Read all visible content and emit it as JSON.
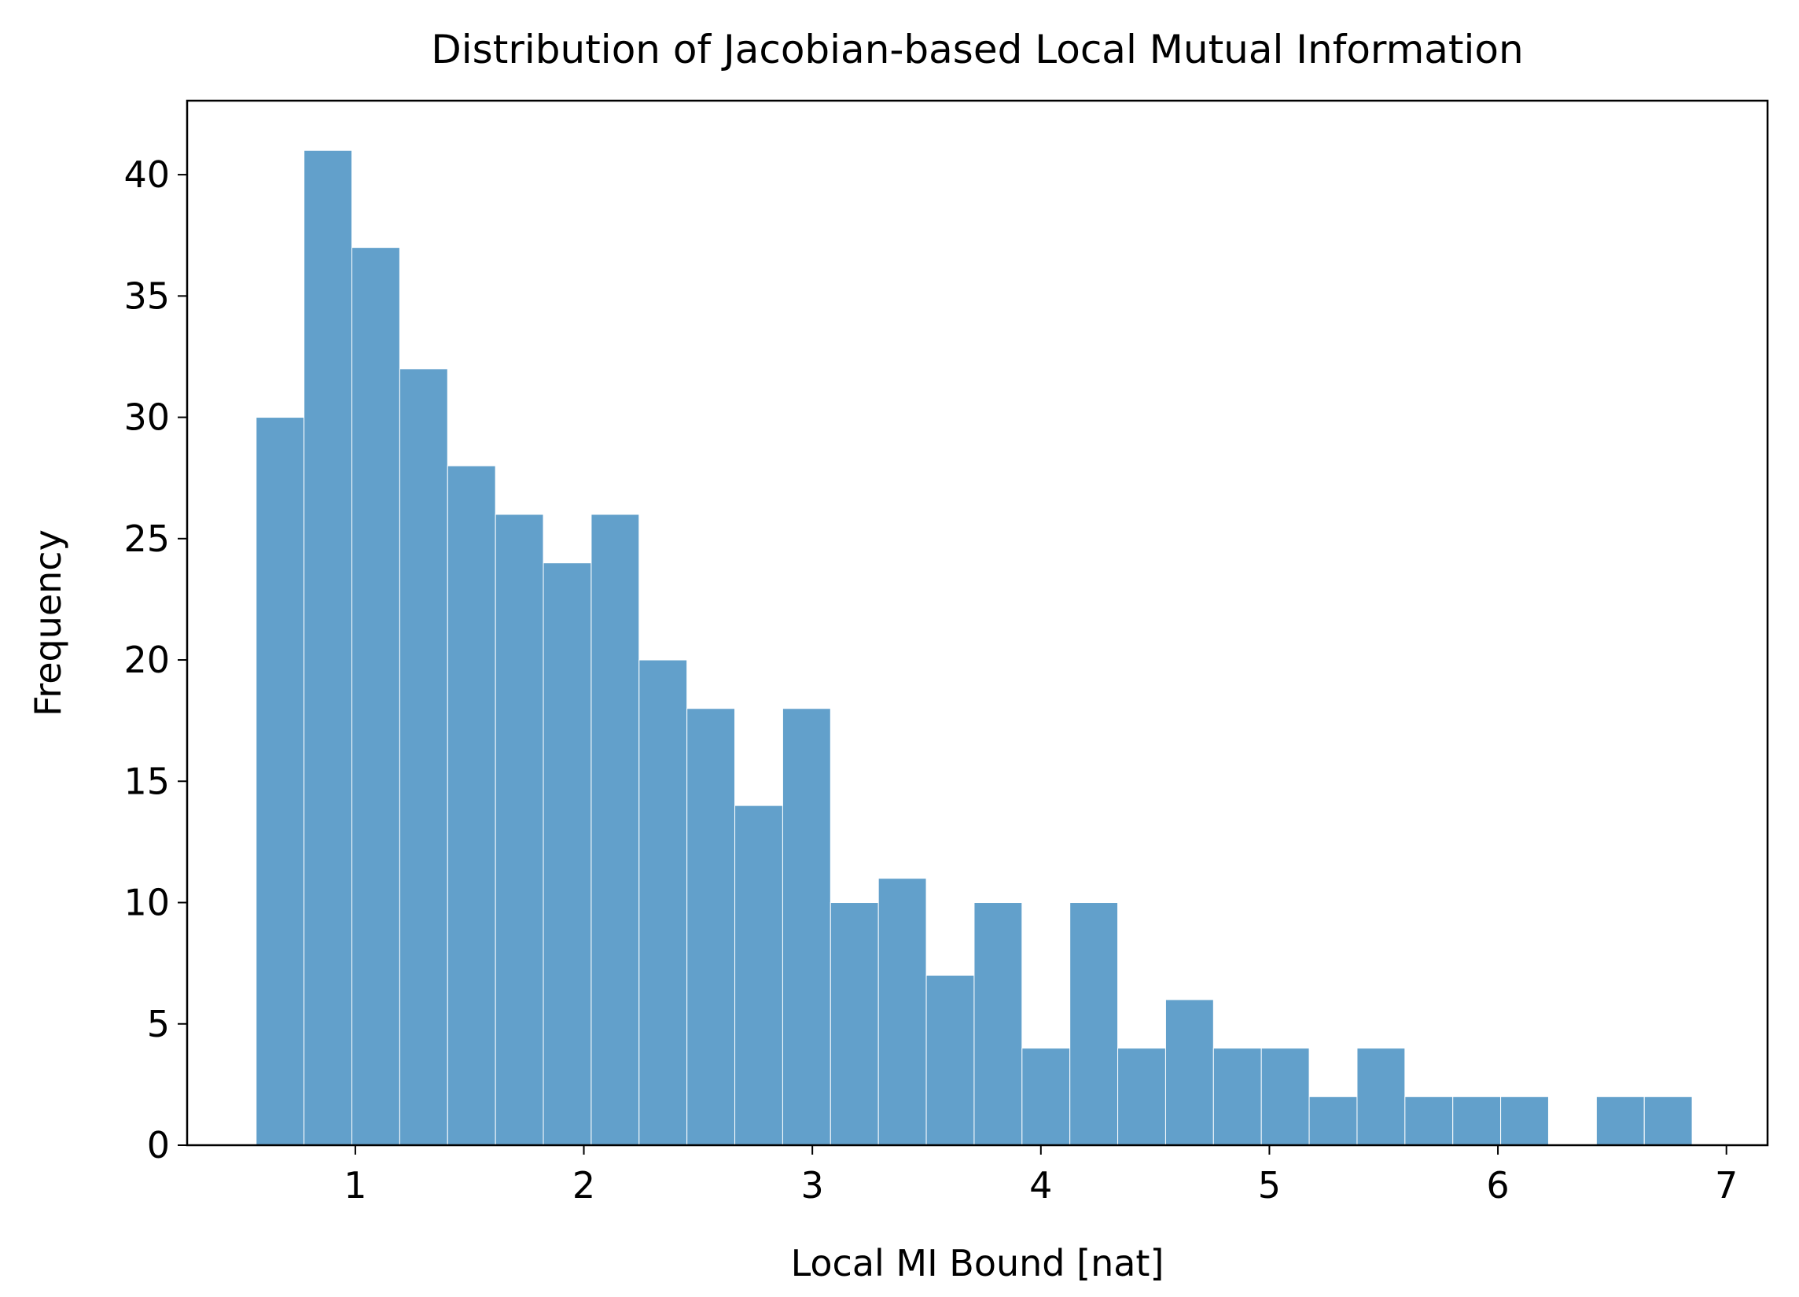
{
  "chart_data": {
    "type": "bar",
    "subtype": "histogram",
    "title": "Distribution of Jacobian-based Local Mutual Information",
    "xlabel": "Local MI Bound [nat]",
    "ylabel": "Frequency",
    "bin_range": [
      0.566,
      6.85
    ],
    "counts": [
      30,
      41,
      37,
      32,
      28,
      26,
      24,
      26,
      20,
      18,
      14,
      18,
      10,
      11,
      7,
      10,
      4,
      10,
      4,
      6,
      4,
      4,
      2,
      4,
      2,
      2,
      2,
      0,
      2,
      2
    ],
    "xlim": [
      0.264,
      7.18
    ],
    "ylim": [
      0,
      43.05
    ],
    "xticks": [
      1,
      2,
      3,
      4,
      5,
      6,
      7
    ],
    "yticks": [
      0,
      5,
      10,
      15,
      20,
      25,
      30,
      35,
      40
    ],
    "grid": false,
    "legend": "none",
    "colors": {
      "bar": "#62a0cb",
      "bar_edge": "#ffffff",
      "axes": "#000000"
    }
  }
}
